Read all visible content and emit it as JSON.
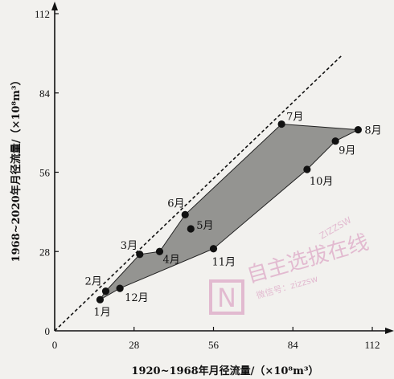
{
  "chart_data": {
    "type": "scatter",
    "title": "",
    "xlabel": "1920~1968年月径流量/（×10⁸m³）",
    "ylabel": "1968~2020年月径流量/（×10⁸m³）",
    "xlim": [
      0,
      112
    ],
    "ylim": [
      0,
      112
    ],
    "xticks": [
      "0",
      "28",
      "56",
      "84",
      "112"
    ],
    "yticks": [
      "0",
      "28",
      "56",
      "84",
      "112"
    ],
    "reference_line": {
      "style": "dashed",
      "x": [
        0,
        101
      ],
      "y": [
        0,
        97
      ]
    },
    "points": [
      {
        "label": "1月",
        "x": 16,
        "y": 11
      },
      {
        "label": "2月",
        "x": 18,
        "y": 14
      },
      {
        "label": "3月",
        "x": 30,
        "y": 27
      },
      {
        "label": "4月",
        "x": 37,
        "y": 28
      },
      {
        "label": "5月",
        "x": 48,
        "y": 36
      },
      {
        "label": "6月",
        "x": 46,
        "y": 41
      },
      {
        "label": "7月",
        "x": 80,
        "y": 73
      },
      {
        "label": "8月",
        "x": 107,
        "y": 71
      },
      {
        "label": "9月",
        "x": 99,
        "y": 67
      },
      {
        "label": "10月",
        "x": 89,
        "y": 57
      },
      {
        "label": "11月",
        "x": 56,
        "y": 29
      },
      {
        "label": "12月",
        "x": 23,
        "y": 15
      }
    ],
    "polygon_order_upper": [
      "1月",
      "2月",
      "3月",
      "4月",
      "6月",
      "7月",
      "8月"
    ],
    "polygon_order_lower": [
      "8月",
      "9月",
      "10月",
      "11月",
      "12月",
      "1月"
    ],
    "fill_color": "#8a8a86",
    "grid": false
  },
  "watermark": {
    "brand": "自主选拔在线",
    "sub": "微信号：zizzsw",
    "url": "ZIZZSW"
  }
}
